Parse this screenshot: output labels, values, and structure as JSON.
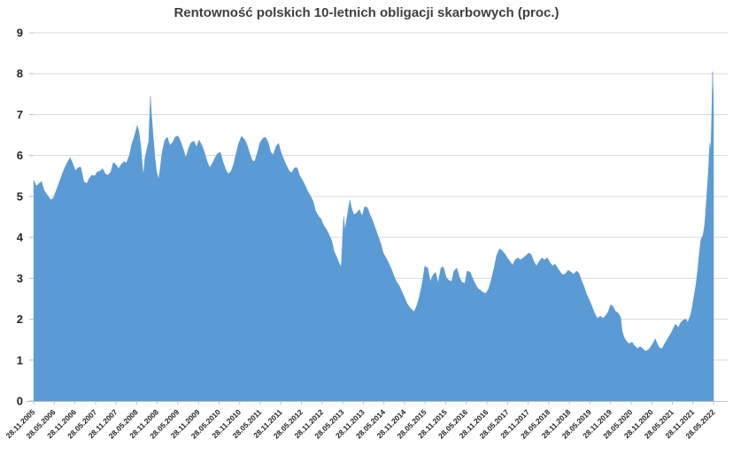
{
  "title": "Rentowność polskich 10-letnich obligacji skarbowych (proc.)",
  "chart_data": {
    "type": "area",
    "title": "Rentowność polskich 10-letnich obligacji skarbowych (proc.)",
    "xlabel": "",
    "ylabel": "",
    "grid": "horizontal",
    "legend": "none",
    "area_color": "#5b9bd5",
    "ylim": [
      0,
      9
    ],
    "y_ticks": [
      0,
      1,
      2,
      3,
      4,
      5,
      6,
      7,
      8,
      9
    ],
    "x_start_year": 2005.907,
    "x_tick_interval_years": 0.5,
    "x_tick_labels": [
      "28.11.2005",
      "28.05.2006",
      "28.11.2006",
      "28.05.2007",
      "28.11.2007",
      "28.05.2008",
      "28.11.2008",
      "28.05.2009",
      "28.11.2009",
      "28.05.2010",
      "28.11.2010",
      "28.05.2011",
      "28.11.2011",
      "28.05.2012",
      "28.11.2012",
      "28.05.2013",
      "28.11.2013",
      "28.05.2014",
      "28.11.2014",
      "28.05.2015",
      "28.11.2015",
      "28.05.2016",
      "28.11.2016",
      "28.05.2017",
      "28.11.2017",
      "28.05.2018",
      "28.11.2018",
      "28.05.2019",
      "28.11.2019",
      "28.05.2020",
      "28.11.2020",
      "28.05.2021",
      "28.11.2021",
      "28.05.2022"
    ],
    "series": [
      {
        "points": [
          [
            2005.91,
            5.4
          ],
          [
            2005.97,
            5.25
          ],
          [
            2006.04,
            5.32
          ],
          [
            2006.1,
            5.36
          ],
          [
            2006.16,
            5.15
          ],
          [
            2006.23,
            5.05
          ],
          [
            2006.32,
            4.92
          ],
          [
            2006.38,
            4.95
          ],
          [
            2006.44,
            5.1
          ],
          [
            2006.53,
            5.35
          ],
          [
            2006.62,
            5.6
          ],
          [
            2006.7,
            5.78
          ],
          [
            2006.79,
            5.95
          ],
          [
            2006.85,
            5.82
          ],
          [
            2006.92,
            5.63
          ],
          [
            2006.98,
            5.7
          ],
          [
            2007.05,
            5.72
          ],
          [
            2007.13,
            5.35
          ],
          [
            2007.2,
            5.32
          ],
          [
            2007.26,
            5.45
          ],
          [
            2007.32,
            5.52
          ],
          [
            2007.39,
            5.5
          ],
          [
            2007.45,
            5.6
          ],
          [
            2007.52,
            5.62
          ],
          [
            2007.58,
            5.68
          ],
          [
            2007.65,
            5.55
          ],
          [
            2007.71,
            5.52
          ],
          [
            2007.78,
            5.6
          ],
          [
            2007.84,
            5.83
          ],
          [
            2007.9,
            5.78
          ],
          [
            2007.97,
            5.68
          ],
          [
            2008.03,
            5.78
          ],
          [
            2008.1,
            5.85
          ],
          [
            2008.16,
            5.82
          ],
          [
            2008.23,
            6.0
          ],
          [
            2008.29,
            6.28
          ],
          [
            2008.36,
            6.5
          ],
          [
            2008.42,
            6.73
          ],
          [
            2008.46,
            6.6
          ],
          [
            2008.51,
            6.2
          ],
          [
            2008.55,
            5.7
          ],
          [
            2008.57,
            5.52
          ],
          [
            2008.61,
            5.95
          ],
          [
            2008.66,
            6.18
          ],
          [
            2008.7,
            6.35
          ],
          [
            2008.74,
            7.45
          ],
          [
            2008.76,
            7.1
          ],
          [
            2008.81,
            6.45
          ],
          [
            2008.85,
            5.95
          ],
          [
            2008.89,
            5.6
          ],
          [
            2008.94,
            5.42
          ],
          [
            2008.98,
            5.7
          ],
          [
            2009.02,
            6.05
          ],
          [
            2009.09,
            6.38
          ],
          [
            2009.15,
            6.45
          ],
          [
            2009.21,
            6.25
          ],
          [
            2009.28,
            6.32
          ],
          [
            2009.34,
            6.45
          ],
          [
            2009.41,
            6.48
          ],
          [
            2009.47,
            6.35
          ],
          [
            2009.54,
            6.15
          ],
          [
            2009.6,
            5.95
          ],
          [
            2009.67,
            6.18
          ],
          [
            2009.73,
            6.32
          ],
          [
            2009.8,
            6.35
          ],
          [
            2009.86,
            6.2
          ],
          [
            2009.92,
            6.38
          ],
          [
            2009.99,
            6.25
          ],
          [
            2010.05,
            6.08
          ],
          [
            2010.12,
            5.85
          ],
          [
            2010.18,
            5.7
          ],
          [
            2010.25,
            5.82
          ],
          [
            2010.31,
            5.95
          ],
          [
            2010.37,
            6.05
          ],
          [
            2010.44,
            6.08
          ],
          [
            2010.5,
            5.85
          ],
          [
            2010.57,
            5.65
          ],
          [
            2010.63,
            5.55
          ],
          [
            2010.7,
            5.62
          ],
          [
            2010.76,
            5.78
          ],
          [
            2010.82,
            6.05
          ],
          [
            2010.89,
            6.32
          ],
          [
            2010.95,
            6.47
          ],
          [
            2011.02,
            6.4
          ],
          [
            2011.08,
            6.28
          ],
          [
            2011.15,
            6.05
          ],
          [
            2011.21,
            5.88
          ],
          [
            2011.27,
            5.85
          ],
          [
            2011.34,
            6.08
          ],
          [
            2011.4,
            6.32
          ],
          [
            2011.47,
            6.42
          ],
          [
            2011.53,
            6.45
          ],
          [
            2011.6,
            6.32
          ],
          [
            2011.66,
            6.08
          ],
          [
            2011.72,
            6.02
          ],
          [
            2011.79,
            6.22
          ],
          [
            2011.85,
            6.3
          ],
          [
            2011.91,
            6.08
          ],
          [
            2011.98,
            5.9
          ],
          [
            2012.04,
            5.76
          ],
          [
            2012.11,
            5.62
          ],
          [
            2012.17,
            5.58
          ],
          [
            2012.24,
            5.7
          ],
          [
            2012.3,
            5.7
          ],
          [
            2012.36,
            5.52
          ],
          [
            2012.43,
            5.4
          ],
          [
            2012.49,
            5.28
          ],
          [
            2012.56,
            5.12
          ],
          [
            2012.62,
            5.02
          ],
          [
            2012.69,
            4.88
          ],
          [
            2012.75,
            4.65
          ],
          [
            2012.82,
            4.52
          ],
          [
            2012.88,
            4.45
          ],
          [
            2012.94,
            4.3
          ],
          [
            2013.01,
            4.2
          ],
          [
            2013.07,
            4.08
          ],
          [
            2013.14,
            3.92
          ],
          [
            2013.2,
            3.65
          ],
          [
            2013.27,
            3.5
          ],
          [
            2013.33,
            3.35
          ],
          [
            2013.37,
            3.28
          ],
          [
            2013.43,
            4.52
          ],
          [
            2013.46,
            4.18
          ],
          [
            2013.51,
            4.48
          ],
          [
            2013.58,
            4.92
          ],
          [
            2013.62,
            4.72
          ],
          [
            2013.68,
            4.55
          ],
          [
            2013.75,
            4.6
          ],
          [
            2013.81,
            4.68
          ],
          [
            2013.88,
            4.52
          ],
          [
            2013.94,
            4.75
          ],
          [
            2014.01,
            4.72
          ],
          [
            2014.07,
            4.55
          ],
          [
            2014.13,
            4.42
          ],
          [
            2014.2,
            4.22
          ],
          [
            2014.26,
            4.05
          ],
          [
            2014.33,
            3.85
          ],
          [
            2014.39,
            3.62
          ],
          [
            2014.46,
            3.5
          ],
          [
            2014.52,
            3.38
          ],
          [
            2014.59,
            3.22
          ],
          [
            2014.65,
            3.06
          ],
          [
            2014.71,
            2.92
          ],
          [
            2014.78,
            2.82
          ],
          [
            2014.84,
            2.68
          ],
          [
            2014.91,
            2.52
          ],
          [
            2014.97,
            2.38
          ],
          [
            2015.04,
            2.28
          ],
          [
            2015.1,
            2.22
          ],
          [
            2015.14,
            2.18
          ],
          [
            2015.21,
            2.35
          ],
          [
            2015.27,
            2.55
          ],
          [
            2015.34,
            2.9
          ],
          [
            2015.4,
            3.3
          ],
          [
            2015.47,
            3.25
          ],
          [
            2015.53,
            2.92
          ],
          [
            2015.6,
            3.08
          ],
          [
            2015.66,
            3.15
          ],
          [
            2015.72,
            2.88
          ],
          [
            2015.79,
            3.25
          ],
          [
            2015.85,
            3.28
          ],
          [
            2015.92,
            3.02
          ],
          [
            2015.98,
            2.95
          ],
          [
            2016.05,
            2.92
          ],
          [
            2016.11,
            3.18
          ],
          [
            2016.18,
            3.25
          ],
          [
            2016.24,
            3.02
          ],
          [
            2016.3,
            2.9
          ],
          [
            2016.37,
            2.88
          ],
          [
            2016.43,
            3.18
          ],
          [
            2016.5,
            3.15
          ],
          [
            2016.56,
            3.0
          ],
          [
            2016.63,
            2.85
          ],
          [
            2016.69,
            2.75
          ],
          [
            2016.76,
            2.7
          ],
          [
            2016.82,
            2.65
          ],
          [
            2016.88,
            2.63
          ],
          [
            2016.95,
            2.75
          ],
          [
            2017.01,
            2.95
          ],
          [
            2017.08,
            3.25
          ],
          [
            2017.14,
            3.55
          ],
          [
            2017.21,
            3.72
          ],
          [
            2017.27,
            3.68
          ],
          [
            2017.34,
            3.6
          ],
          [
            2017.4,
            3.5
          ],
          [
            2017.46,
            3.42
          ],
          [
            2017.53,
            3.32
          ],
          [
            2017.59,
            3.45
          ],
          [
            2017.66,
            3.5
          ],
          [
            2017.72,
            3.45
          ],
          [
            2017.79,
            3.5
          ],
          [
            2017.85,
            3.55
          ],
          [
            2017.92,
            3.62
          ],
          [
            2017.98,
            3.58
          ],
          [
            2018.04,
            3.42
          ],
          [
            2018.11,
            3.3
          ],
          [
            2018.17,
            3.4
          ],
          [
            2018.24,
            3.5
          ],
          [
            2018.3,
            3.45
          ],
          [
            2018.37,
            3.5
          ],
          [
            2018.43,
            3.4
          ],
          [
            2018.5,
            3.3
          ],
          [
            2018.56,
            3.35
          ],
          [
            2018.62,
            3.25
          ],
          [
            2018.69,
            3.15
          ],
          [
            2018.75,
            3.08
          ],
          [
            2018.82,
            3.12
          ],
          [
            2018.88,
            3.2
          ],
          [
            2018.95,
            3.15
          ],
          [
            2019.01,
            3.1
          ],
          [
            2019.08,
            3.18
          ],
          [
            2019.14,
            3.12
          ],
          [
            2019.2,
            2.95
          ],
          [
            2019.27,
            2.78
          ],
          [
            2019.33,
            2.6
          ],
          [
            2019.4,
            2.45
          ],
          [
            2019.46,
            2.3
          ],
          [
            2019.53,
            2.12
          ],
          [
            2019.59,
            2.02
          ],
          [
            2019.66,
            2.08
          ],
          [
            2019.72,
            2.02
          ],
          [
            2019.78,
            2.08
          ],
          [
            2019.85,
            2.18
          ],
          [
            2019.91,
            2.35
          ],
          [
            2019.96,
            2.32
          ],
          [
            2020.02,
            2.2
          ],
          [
            2020.09,
            2.15
          ],
          [
            2020.15,
            2.05
          ],
          [
            2020.19,
            1.7
          ],
          [
            2020.24,
            1.55
          ],
          [
            2020.3,
            1.45
          ],
          [
            2020.36,
            1.4
          ],
          [
            2020.43,
            1.44
          ],
          [
            2020.49,
            1.35
          ],
          [
            2020.56,
            1.28
          ],
          [
            2020.62,
            1.33
          ],
          [
            2020.69,
            1.28
          ],
          [
            2020.75,
            1.22
          ],
          [
            2020.82,
            1.25
          ],
          [
            2020.88,
            1.32
          ],
          [
            2020.94,
            1.42
          ],
          [
            2020.99,
            1.52
          ],
          [
            2021.03,
            1.42
          ],
          [
            2021.09,
            1.3
          ],
          [
            2021.16,
            1.28
          ],
          [
            2021.22,
            1.4
          ],
          [
            2021.29,
            1.52
          ],
          [
            2021.35,
            1.62
          ],
          [
            2021.42,
            1.75
          ],
          [
            2021.48,
            1.88
          ],
          [
            2021.55,
            1.8
          ],
          [
            2021.61,
            1.92
          ],
          [
            2021.67,
            1.98
          ],
          [
            2021.74,
            2.0
          ],
          [
            2021.78,
            1.92
          ],
          [
            2021.85,
            2.1
          ],
          [
            2021.89,
            2.3
          ],
          [
            2021.93,
            2.55
          ],
          [
            2021.98,
            2.85
          ],
          [
            2022.02,
            3.2
          ],
          [
            2022.06,
            3.6
          ],
          [
            2022.1,
            3.95
          ],
          [
            2022.15,
            4.05
          ],
          [
            2022.19,
            4.3
          ],
          [
            2022.23,
            4.85
          ],
          [
            2022.28,
            5.6
          ],
          [
            2022.3,
            6.05
          ],
          [
            2022.32,
            6.3
          ],
          [
            2022.34,
            6.15
          ],
          [
            2022.36,
            6.9
          ],
          [
            2022.384,
            8.05
          ],
          [
            2022.399,
            7.5
          ],
          [
            2022.405,
            7.05
          ]
        ]
      }
    ]
  }
}
